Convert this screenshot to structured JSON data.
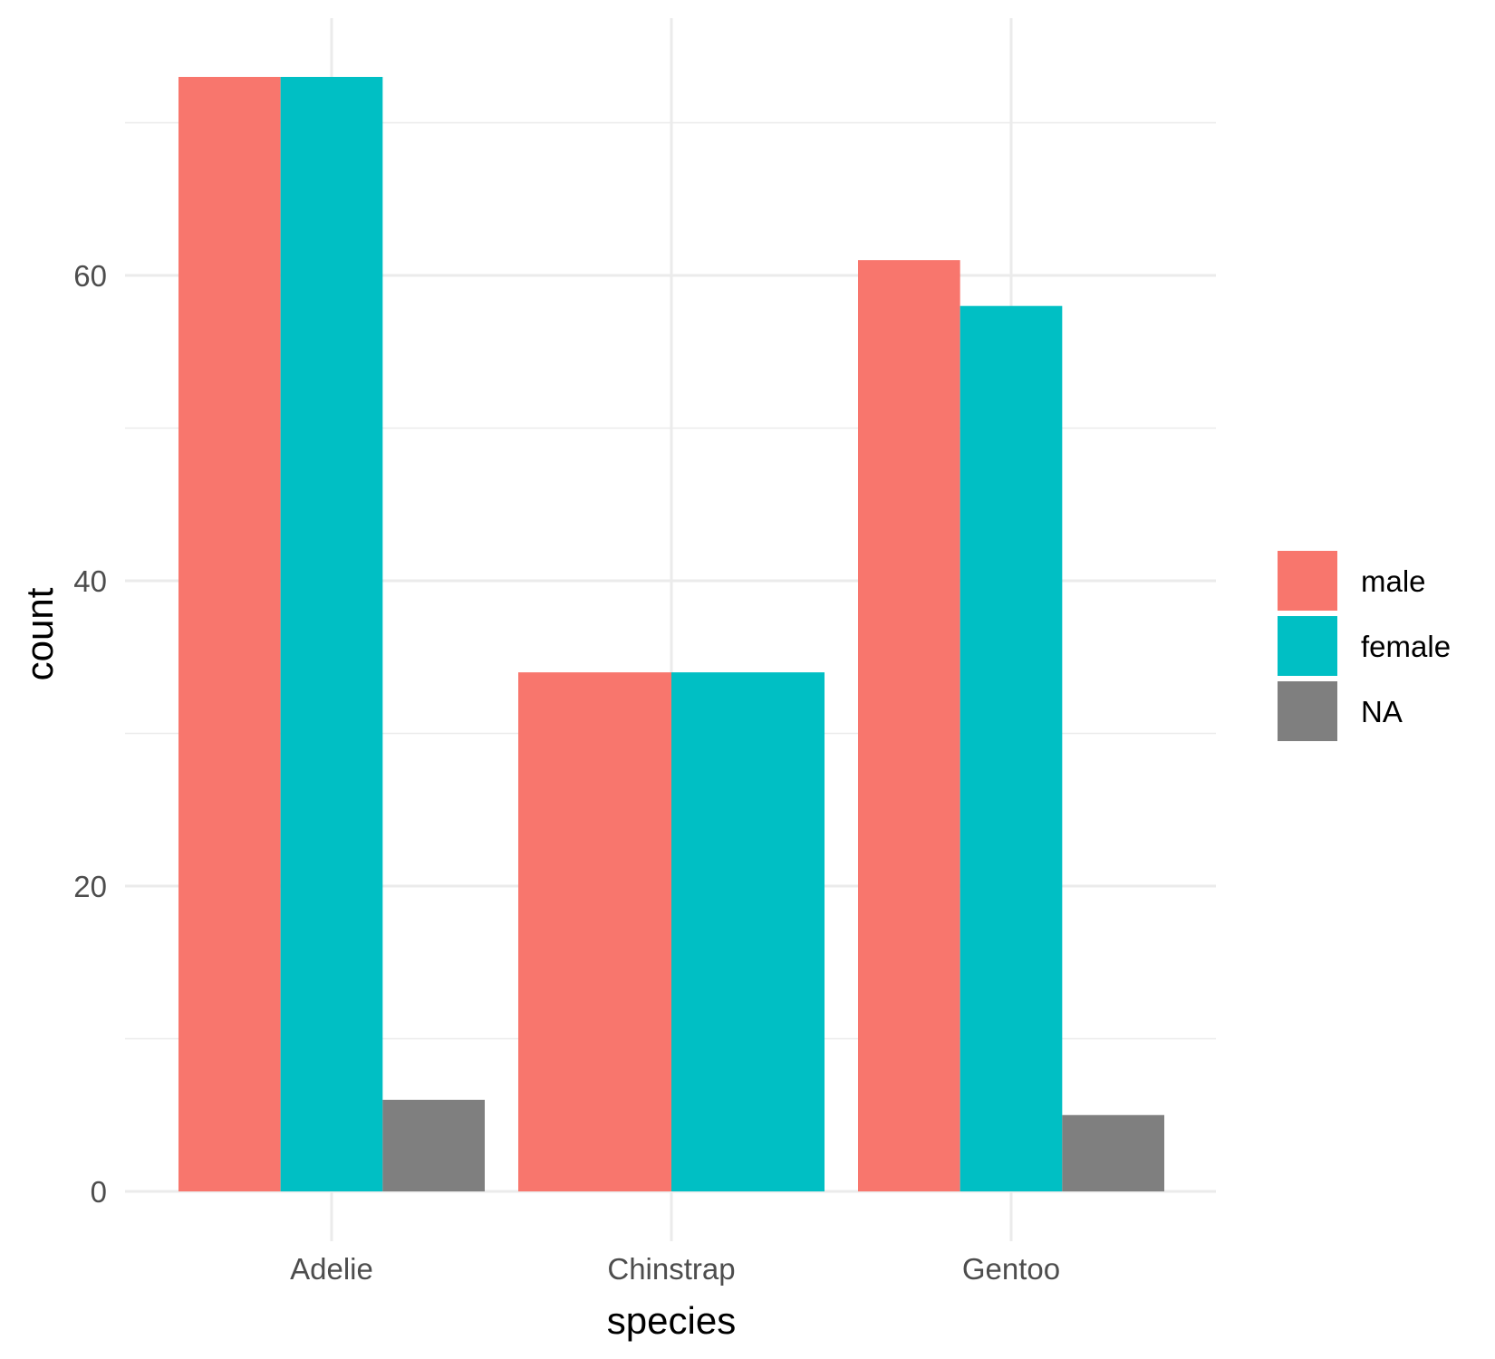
{
  "chart_data": {
    "type": "bar",
    "bar_mode": "dodge",
    "title": "",
    "xlabel": "species",
    "ylabel": "count",
    "categories": [
      "Adelie",
      "Chinstrap",
      "Gentoo"
    ],
    "series": [
      {
        "name": "male",
        "color": "#F8766D",
        "values": [
          73,
          34,
          61
        ]
      },
      {
        "name": "female",
        "color": "#00BFC4",
        "values": [
          73,
          34,
          58
        ]
      },
      {
        "name": "NA",
        "color": "#7F7F7F",
        "values": [
          6,
          0,
          5
        ]
      }
    ],
    "ylim": [
      0,
      76
    ],
    "yticks": [
      0,
      20,
      40,
      60
    ],
    "grid": true,
    "legend_position": "right"
  }
}
